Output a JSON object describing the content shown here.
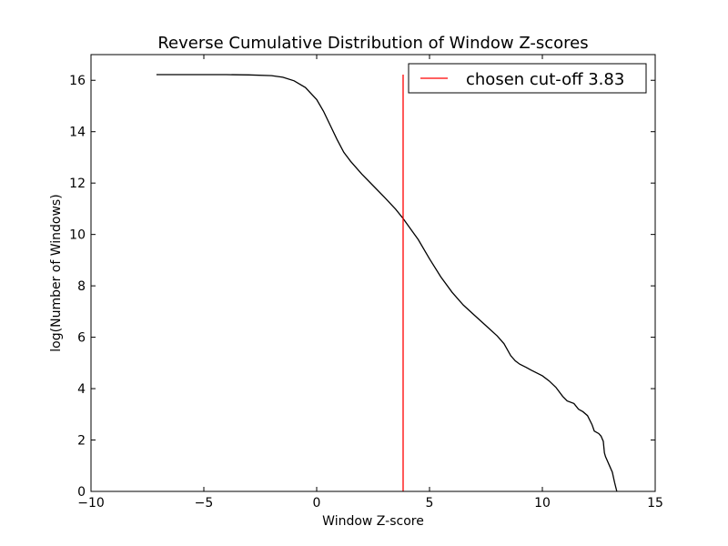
{
  "chart_data": {
    "type": "line",
    "title": "Reverse Cumulative Distribution of Window Z-scores",
    "xlabel": "Window Z-score",
    "ylabel": "log(Number of Windows)",
    "xlim": [
      -10,
      15
    ],
    "ylim": [
      0,
      17
    ],
    "xticks": [
      -10,
      -5,
      0,
      5,
      10,
      15
    ],
    "xtick_labels": [
      "−10",
      "−5",
      "0",
      "5",
      "10",
      "15"
    ],
    "yticks": [
      0,
      2,
      4,
      6,
      8,
      10,
      12,
      14,
      16
    ],
    "ytick_labels": [
      "0",
      "2",
      "4",
      "6",
      "8",
      "10",
      "12",
      "14",
      "16"
    ],
    "grid": false,
    "legend_position": "top-right",
    "series": [
      {
        "color": "#000000",
        "x": [
          -7.1,
          -5,
          -4,
          -3,
          -2,
          -1.5,
          -1,
          -0.5,
          0,
          0.3,
          0.6,
          0.9,
          1.2,
          1.5,
          2,
          2.5,
          3,
          3.5,
          3.83,
          4.5,
          5,
          5.5,
          6,
          6.5,
          7,
          7.5,
          8,
          8.3,
          8.6,
          8.8,
          9,
          9.3,
          9.5,
          10,
          10.3,
          10.6,
          10.9,
          11.1,
          11.4,
          11.6,
          11.8,
          12,
          12.2,
          12.3,
          12.5,
          12.6,
          12.7,
          12.75,
          12.8,
          12.9,
          13,
          13.1,
          13.2,
          13.3
        ],
        "y": [
          16.22,
          16.22,
          16.22,
          16.21,
          16.18,
          16.12,
          15.98,
          15.72,
          15.25,
          14.8,
          14.25,
          13.7,
          13.2,
          12.85,
          12.35,
          11.9,
          11.45,
          10.98,
          10.62,
          9.8,
          9.05,
          8.35,
          7.75,
          7.25,
          6.85,
          6.45,
          6.05,
          5.75,
          5.28,
          5.08,
          4.95,
          4.82,
          4.72,
          4.5,
          4.3,
          4.05,
          3.7,
          3.52,
          3.42,
          3.2,
          3.1,
          2.95,
          2.6,
          2.35,
          2.25,
          2.15,
          1.95,
          1.5,
          1.35,
          1.15,
          0.95,
          0.75,
          0.35,
          0.0
        ]
      }
    ],
    "vline": {
      "label": "chosen cut-off 3.83",
      "x": 3.83,
      "y_range": [
        0,
        16.22
      ],
      "color": "#ff0000"
    }
  }
}
